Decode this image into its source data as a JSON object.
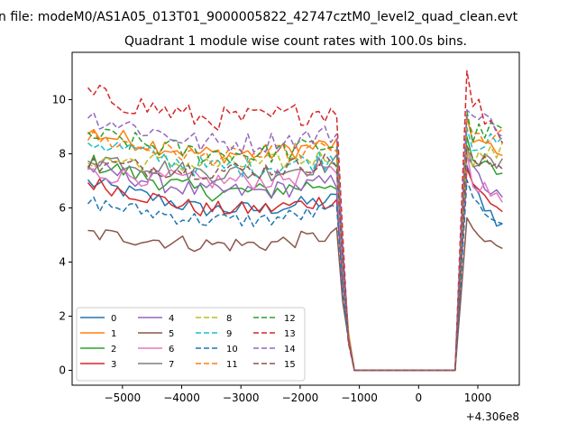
{
  "chart_data": {
    "type": "line",
    "suptitle": "n file: modeM0/AS1A05_013T01_9000005822_42747cztM0_level2_quad_clean.evt",
    "title": "Quadrant 1 module wise count rates with 100.0s bins.",
    "xlabel": "",
    "ylabel": "",
    "x_offset_label": "+4.306e8",
    "xlim": [
      -5850,
      1700
    ],
    "ylim": [
      -0.55,
      11.75
    ],
    "xticks": [
      -5000,
      -4000,
      -3000,
      -2000,
      -1000,
      0,
      1000
    ],
    "xtick_labels": [
      "−5000",
      "−4000",
      "−3000",
      "−2000",
      "−1000",
      "0",
      "1000"
    ],
    "yticks": [
      0,
      2,
      4,
      6,
      8,
      10
    ],
    "ytick_labels": [
      "0",
      "2",
      "4",
      "6",
      "8",
      "10"
    ],
    "legend": {
      "placement": "lower-left",
      "columns": 4
    },
    "x": [
      -5584,
      -5484,
      -5384,
      -5284,
      -5184,
      -5084,
      -4984,
      -4884,
      -4784,
      -4684,
      -4584,
      -4484,
      -4384,
      -4284,
      -4184,
      -4084,
      -3984,
      -3884,
      -3784,
      -3684,
      -3584,
      -3484,
      -3384,
      -3284,
      -3184,
      -3084,
      -2984,
      -2884,
      -2784,
      -2684,
      -2584,
      -2484,
      -2384,
      -2284,
      -2184,
      -2084,
      -1984,
      -1884,
      -1784,
      -1684,
      -1584,
      -1484,
      -1384,
      -1284,
      -1184,
      -1084,
      -984,
      -884,
      -784,
      -684,
      -584,
      -484,
      -384,
      -284,
      -184,
      -84,
      16,
      116,
      216,
      316,
      416,
      516,
      616,
      716,
      816,
      916,
      1016,
      1116,
      1216,
      1316,
      1416
    ],
    "gap": {
      "start_index": 44,
      "end_index": 63,
      "level": 0
    },
    "series": [
      {
        "name": "0",
        "color": "#1f77b4",
        "dash": "",
        "base": 5.95,
        "start": 6.95,
        "end": 5.3,
        "amp": 0.3
      },
      {
        "name": "1",
        "color": "#ff7f0e",
        "dash": "",
        "base": 8.0,
        "start": 8.8,
        "end": 7.8,
        "amp": 0.35
      },
      {
        "name": "2",
        "color": "#2ca02c",
        "dash": "",
        "base": 6.6,
        "start": 7.7,
        "end": 7.3,
        "amp": 0.35
      },
      {
        "name": "3",
        "color": "#d62728",
        "dash": "",
        "base": 5.95,
        "start": 6.95,
        "end": 5.9,
        "amp": 0.3
      },
      {
        "name": "4",
        "color": "#9467bd",
        "dash": "",
        "base": 6.6,
        "start": 7.5,
        "end": 6.2,
        "amp": 0.35
      },
      {
        "name": "5",
        "color": "#8c564b",
        "dash": "",
        "base": 4.65,
        "start": 5.05,
        "end": 4.5,
        "amp": 0.3
      },
      {
        "name": "6",
        "color": "#e377c2",
        "dash": "",
        "base": 7.0,
        "start": 7.3,
        "end": 6.1,
        "amp": 0.35
      },
      {
        "name": "7",
        "color": "#7f7f7f",
        "dash": "",
        "base": 7.3,
        "start": 7.9,
        "end": 7.5,
        "amp": 0.35
      },
      {
        "name": "8",
        "color": "#bcbd22",
        "dash": "6,3",
        "base": 7.6,
        "start": 7.8,
        "end": 8.1,
        "amp": 0.35
      },
      {
        "name": "9",
        "color": "#17becf",
        "dash": "6,3",
        "base": 7.5,
        "start": 8.5,
        "end": 8.3,
        "amp": 0.4
      },
      {
        "name": "10",
        "color": "#1f77b4",
        "dash": "6,3",
        "base": 5.55,
        "start": 6.2,
        "end": 5.6,
        "amp": 0.3
      },
      {
        "name": "11",
        "color": "#ff7f0e",
        "dash": "6,3",
        "base": 7.9,
        "start": 8.6,
        "end": 8.6,
        "amp": 0.35
      },
      {
        "name": "12",
        "color": "#2ca02c",
        "dash": "6,3",
        "base": 8.0,
        "start": 8.7,
        "end": 8.9,
        "amp": 0.4
      },
      {
        "name": "13",
        "color": "#d62728",
        "dash": "6,3",
        "base": 9.3,
        "start": 10.2,
        "end": 8.7,
        "amp": 0.45
      },
      {
        "name": "14",
        "color": "#9467bd",
        "dash": "6,3",
        "base": 8.4,
        "start": 9.4,
        "end": 9.0,
        "amp": 0.4
      },
      {
        "name": "15",
        "color": "#8c564b",
        "dash": "6,3",
        "base": 7.4,
        "start": 7.6,
        "end": 7.6,
        "amp": 0.35
      }
    ]
  }
}
